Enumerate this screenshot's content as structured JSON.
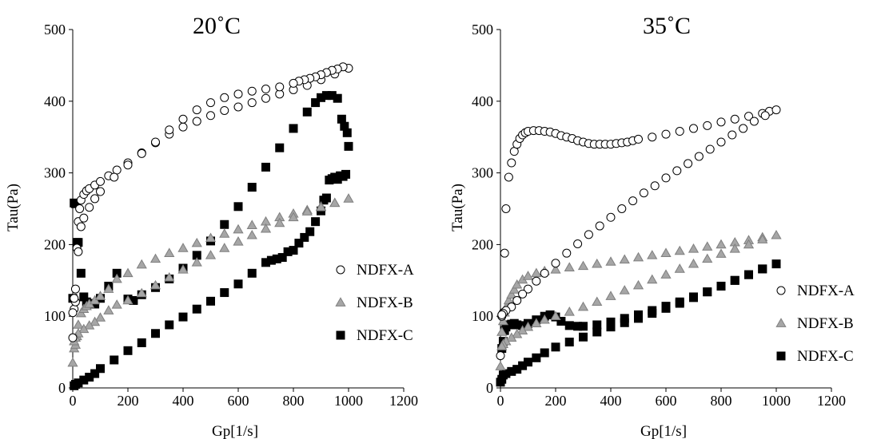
{
  "chart_data": [
    {
      "type": "scatter",
      "title": "20˚C",
      "xlabel": "Gp[1/s]",
      "ylabel": "Tau(Pa)",
      "xlim": [
        0,
        1200
      ],
      "ylim": [
        0,
        500
      ],
      "xticks": [
        0,
        200,
        400,
        600,
        800,
        1000,
        1200
      ],
      "yticks": [
        0,
        100,
        200,
        300,
        400,
        500
      ],
      "grid": false,
      "legend": "center-right",
      "series": [
        {
          "name": "NDFX-A",
          "marker": "circle-open",
          "color": "#000000",
          "fill": "#ffffff",
          "x": [
            0,
            5,
            10,
            15,
            20,
            25,
            30,
            40,
            50,
            60,
            80,
            100,
            130,
            160,
            200,
            250,
            300,
            350,
            400,
            450,
            500,
            550,
            600,
            650,
            700,
            750,
            800,
            850,
            900,
            950,
            1000,
            980,
            960,
            940,
            920,
            900,
            880,
            860,
            840,
            820,
            800,
            750,
            700,
            650,
            600,
            550,
            500,
            450,
            400,
            350,
            300,
            250,
            200,
            150,
            100,
            80,
            60,
            40,
            30,
            20,
            10,
            5,
            0
          ],
          "y": [
            70,
            110,
            120,
            195,
            232,
            250,
            262,
            270,
            275,
            278,
            283,
            288,
            296,
            304,
            314,
            328,
            342,
            354,
            364,
            372,
            380,
            387,
            392,
            398,
            404,
            410,
            416,
            422,
            430,
            438,
            446,
            448,
            445,
            443,
            440,
            437,
            434,
            432,
            430,
            428,
            425,
            420,
            417,
            414,
            410,
            405,
            398,
            388,
            375,
            360,
            343,
            327,
            311,
            294,
            274,
            264,
            252,
            237,
            225,
            190,
            138,
            125,
            105
          ]
        },
        {
          "name": "NDFX-B",
          "marker": "triangle",
          "color": "#7f7f7f",
          "fill": "#a6a6a6",
          "x": [
            0,
            5,
            10,
            15,
            20,
            30,
            40,
            50,
            60,
            80,
            100,
            130,
            160,
            200,
            250,
            300,
            350,
            400,
            450,
            500,
            550,
            600,
            650,
            700,
            750,
            800,
            850,
            900,
            950,
            1000,
            950,
            900,
            850,
            800,
            750,
            700,
            650,
            600,
            550,
            500,
            450,
            400,
            350,
            300,
            250,
            200,
            160,
            130,
            100,
            80,
            60,
            40,
            20,
            10,
            5
          ],
          "y": [
            35,
            55,
            60,
            72,
            88,
            104,
            110,
            114,
            117,
            122,
            128,
            138,
            152,
            160,
            172,
            180,
            188,
            195,
            202,
            209,
            215,
            221,
            227,
            232,
            238,
            243,
            248,
            253,
            258,
            264,
            258,
            252,
            246,
            238,
            230,
            222,
            213,
            204,
            195,
            185,
            175,
            165,
            154,
            143,
            132,
            122,
            116,
            108,
            98,
            92,
            87,
            82,
            76,
            70,
            65
          ]
        },
        {
          "name": "NDFX-C",
          "marker": "square",
          "color": "#000000",
          "fill": "#000000",
          "x": [
            0,
            5,
            10,
            15,
            20,
            30,
            40,
            50,
            60,
            80,
            100,
            130,
            160,
            200,
            220,
            250,
            300,
            350,
            400,
            450,
            500,
            550,
            600,
            650,
            700,
            750,
            800,
            850,
            880,
            900,
            920,
            940,
            960,
            975,
            985,
            995,
            1000,
            990,
            980,
            970,
            960,
            950,
            940,
            930,
            920,
            910,
            900,
            880,
            860,
            840,
            820,
            800,
            780,
            760,
            740,
            720,
            700,
            650,
            600,
            550,
            500,
            450,
            400,
            350,
            300,
            250,
            200,
            150,
            100,
            80,
            60,
            40,
            20,
            10,
            5
          ],
          "y": [
            125,
            258,
            257,
            203,
            203,
            160,
            127,
            120,
            118,
            117,
            125,
            142,
            160,
            124,
            122,
            130,
            140,
            152,
            167,
            185,
            205,
            228,
            253,
            280,
            308,
            335,
            362,
            385,
            398,
            405,
            408,
            408,
            404,
            375,
            365,
            356,
            337,
            298,
            295,
            296,
            291,
            294,
            292,
            290,
            265,
            262,
            247,
            232,
            218,
            210,
            202,
            192,
            190,
            182,
            180,
            178,
            175,
            160,
            145,
            133,
            121,
            110,
            99,
            88,
            76,
            63,
            52,
            39,
            27,
            20,
            15,
            11,
            7,
            5,
            3
          ]
        }
      ]
    },
    {
      "type": "scatter",
      "title": "35˚C",
      "xlabel": "Gp[1/s]",
      "ylabel": "Tau(Pa)",
      "xlim": [
        0,
        1200
      ],
      "ylim": [
        0,
        500
      ],
      "xticks": [
        0,
        200,
        400,
        600,
        800,
        1000,
        1200
      ],
      "yticks": [
        0,
        100,
        200,
        300,
        400,
        500
      ],
      "grid": false,
      "legend": "bottom-right",
      "series": [
        {
          "name": "NDFX-A",
          "marker": "circle-open",
          "color": "#000000",
          "fill": "#ffffff",
          "x": [
            0,
            5,
            10,
            15,
            20,
            30,
            40,
            50,
            60,
            70,
            80,
            90,
            100,
            120,
            140,
            160,
            180,
            200,
            220,
            240,
            260,
            280,
            300,
            320,
            340,
            360,
            380,
            400,
            420,
            440,
            460,
            480,
            500,
            550,
            600,
            650,
            700,
            750,
            800,
            850,
            900,
            950,
            975,
            1000,
            960,
            920,
            880,
            840,
            800,
            760,
            720,
            680,
            640,
            600,
            560,
            520,
            480,
            440,
            400,
            360,
            320,
            280,
            240,
            200,
            160,
            130,
            100,
            80,
            60,
            40,
            20,
            10,
            5
          ],
          "y": [
            45,
            100,
            105,
            188,
            250,
            294,
            314,
            330,
            340,
            348,
            353,
            356,
            358,
            359,
            359,
            358,
            357,
            355,
            352,
            350,
            348,
            345,
            343,
            341,
            340,
            340,
            340,
            340,
            341,
            342,
            343,
            345,
            347,
            350,
            354,
            358,
            362,
            366,
            371,
            375,
            379,
            383,
            386,
            388,
            380,
            372,
            362,
            353,
            343,
            333,
            323,
            313,
            303,
            293,
            282,
            272,
            261,
            250,
            238,
            226,
            214,
            201,
            188,
            174,
            160,
            149,
            138,
            131,
            122,
            113,
            108,
            104,
            102
          ]
        },
        {
          "name": "NDFX-B",
          "marker": "triangle",
          "color": "#7f7f7f",
          "fill": "#a6a6a6",
          "x": [
            0,
            5,
            10,
            15,
            20,
            30,
            40,
            50,
            60,
            80,
            100,
            130,
            160,
            200,
            250,
            300,
            350,
            400,
            450,
            500,
            550,
            600,
            650,
            700,
            750,
            800,
            850,
            900,
            950,
            1000,
            950,
            900,
            850,
            800,
            750,
            700,
            650,
            600,
            550,
            500,
            450,
            400,
            350,
            300,
            250,
            200,
            160,
            130,
            100,
            80,
            60,
            40,
            20,
            10,
            5
          ],
          "y": [
            30,
            78,
            93,
            105,
            112,
            122,
            130,
            137,
            144,
            151,
            156,
            160,
            163,
            165,
            168,
            170,
            173,
            176,
            179,
            182,
            185,
            188,
            191,
            194,
            197,
            200,
            203,
            206,
            210,
            213,
            207,
            200,
            194,
            187,
            180,
            173,
            166,
            158,
            151,
            143,
            136,
            128,
            120,
            113,
            106,
            100,
            95,
            90,
            85,
            80,
            75,
            70,
            65,
            61,
            58
          ]
        },
        {
          "name": "NDFX-C",
          "marker": "square",
          "color": "#000000",
          "fill": "#000000",
          "x": [
            0,
            5,
            10,
            15,
            20,
            30,
            40,
            50,
            60,
            80,
            100,
            130,
            160,
            180,
            200,
            220,
            250,
            280,
            300,
            350,
            400,
            450,
            500,
            550,
            600,
            650,
            700,
            750,
            800,
            850,
            900,
            950,
            1000,
            950,
            900,
            850,
            800,
            750,
            700,
            650,
            600,
            550,
            500,
            450,
            400,
            350,
            300,
            250,
            200,
            160,
            130,
            100,
            80,
            60,
            40,
            20,
            10,
            5
          ],
          "y": [
            8,
            55,
            65,
            80,
            85,
            88,
            89,
            90,
            88,
            87,
            90,
            95,
            100,
            102,
            99,
            93,
            87,
            86,
            86,
            88,
            92,
            97,
            102,
            108,
            114,
            120,
            127,
            134,
            142,
            150,
            158,
            166,
            173,
            166,
            158,
            150,
            142,
            134,
            126,
            118,
            111,
            104,
            97,
            91,
            85,
            78,
            71,
            64,
            57,
            49,
            42,
            36,
            31,
            26,
            23,
            20,
            18,
            12
          ]
        }
      ]
    }
  ]
}
